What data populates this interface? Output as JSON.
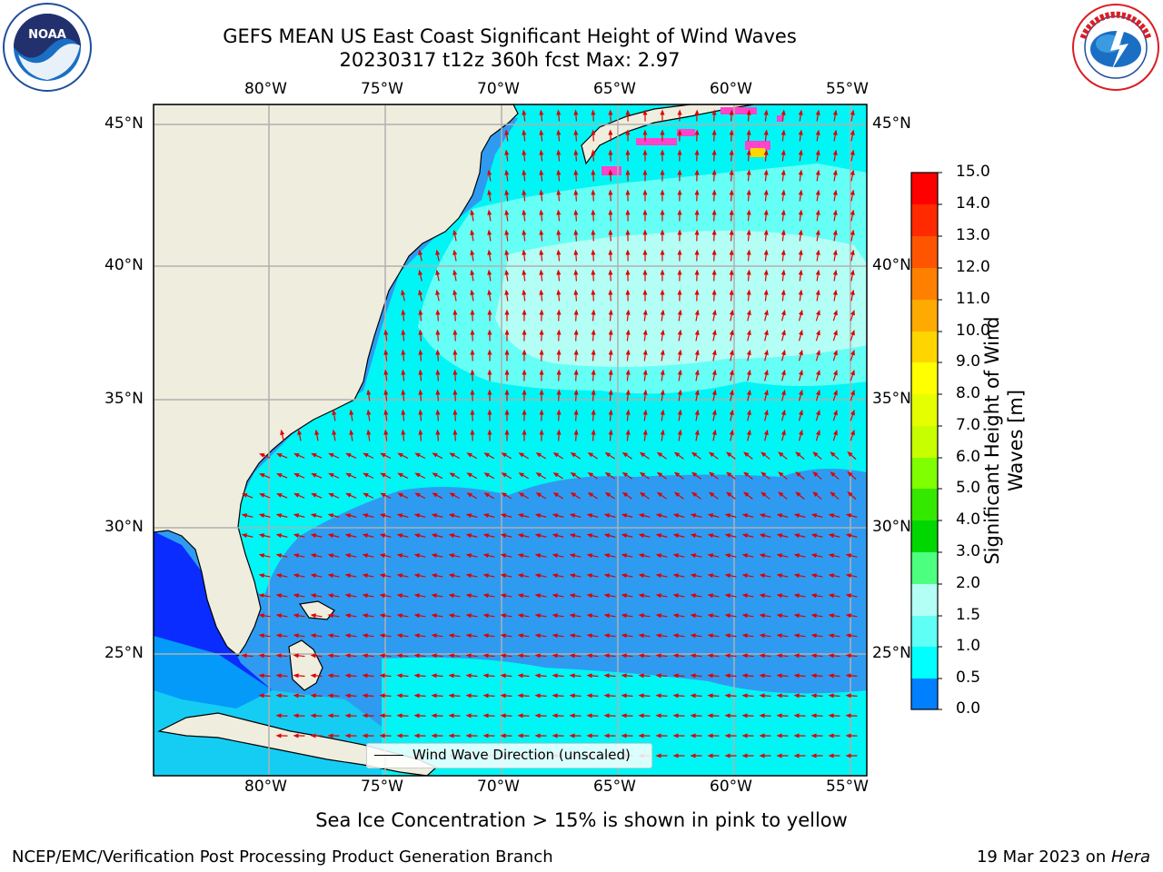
{
  "header": {
    "title_line1": "GEFS MEAN US East Coast Significant Height of Wind Waves",
    "title_line2": "20230317 t12z 360h fcst   Max: 2.97"
  },
  "logos": {
    "left": {
      "name": "NOAA",
      "ring_text": "NATIONAL OCEANIC AND ATMOSPHERIC ADMINISTRATION · U.S. DEPARTMENT OF COMMERCE",
      "color": "#1f4e9a"
    },
    "right": {
      "name": "NATIONAL WEATHER SERVICE",
      "color": "#d81f26"
    }
  },
  "map": {
    "lon_ticks": [
      "80°W",
      "75°W",
      "70°W",
      "65°W",
      "60°W",
      "55°W"
    ],
    "lat_ticks": [
      "45°N",
      "40°N",
      "35°N",
      "30°N",
      "25°N"
    ],
    "land_color": "#efedde",
    "arrow_color": "#e00000",
    "legend_text": "Wind Wave Direction (unscaled)"
  },
  "colorbar": {
    "label_line1": "Significant Height of Wind",
    "label_line2": "Waves [m]",
    "ticks": [
      "15.0",
      "14.0",
      "13.0",
      "12.0",
      "11.0",
      "10.0",
      "9.0",
      "8.0",
      "7.0",
      "6.0",
      "5.0",
      "4.0",
      "3.0",
      "2.0",
      "1.5",
      "1.0",
      "0.5",
      "0.0"
    ],
    "colors": [
      "#ff0000",
      "#ff2a00",
      "#ff5500",
      "#ff8000",
      "#ffaa00",
      "#ffd500",
      "#ffff00",
      "#e5ff00",
      "#c8ff00",
      "#7fff00",
      "#35e800",
      "#00d700",
      "#4dff7f",
      "#b3fff5",
      "#60fff5",
      "#00ffff",
      "#0080ff",
      "#0000ff"
    ]
  },
  "footer": {
    "ice_note": "Sea Ice Concentration > 15% is shown in pink to yellow",
    "branch": "NCEP/EMC/Verification Post Processing Product Generation Branch",
    "date": "19 Mar 2023 on ",
    "machine": "Hera"
  }
}
